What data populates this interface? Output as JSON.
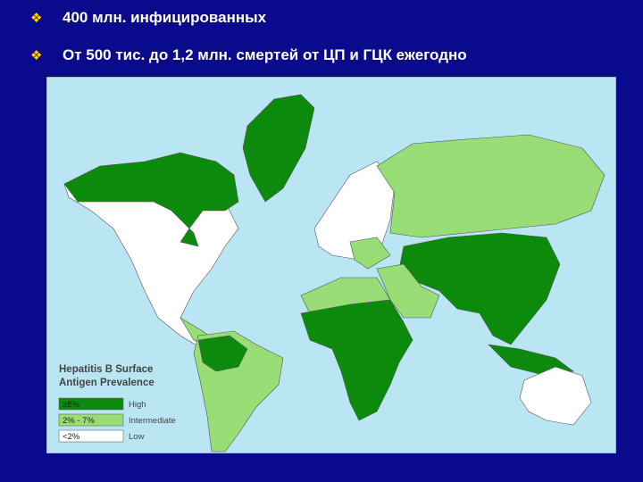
{
  "bullets": [
    "400 млн. инфицированных",
    "От 500 тис. до 1,2 млн. смертей от ЦП и ГЦК ежегодно"
  ],
  "map": {
    "legend": {
      "title": [
        "Hepatitis B Surface",
        "Antigen Prevalence"
      ],
      "items": [
        {
          "range": "≥8%",
          "label": "High",
          "color": "#0b8a0b"
        },
        {
          "range": "2% - 7%",
          "label": "Intermediate",
          "color": "#99dd77"
        },
        {
          "range": "<2%",
          "label": "Low",
          "color": "#ffffff"
        }
      ]
    }
  }
}
